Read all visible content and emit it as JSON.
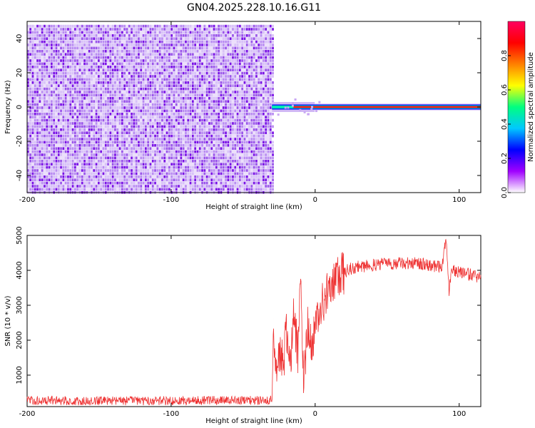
{
  "title": "GN04.2025.228.10.16.G11",
  "chart_data": [
    {
      "type": "heatmap",
      "title": "GN04.2025.228.10.16.G11",
      "xlabel": "Height of straight line (km)",
      "ylabel": "Frequency (Hz)",
      "xlim": [
        -200,
        115
      ],
      "ylim": [
        -50,
        50
      ],
      "x_ticks": [
        "-200",
        "-100",
        "0",
        "100"
      ],
      "y_ticks": [
        "-40",
        "-20",
        "0",
        "20",
        "40"
      ],
      "colorbar": {
        "label": "Normalized spectral amplitude",
        "range": [
          0,
          1
        ],
        "ticks": [
          "0.0",
          "0.2",
          "0.4",
          "0.6",
          "0.8"
        ],
        "colors": [
          "#ffffff",
          "#a000ff",
          "#0000ff",
          "#00c8ff",
          "#00ff80",
          "#ffff00",
          "#ff8000",
          "#ff0000",
          "#ff0060"
        ]
      },
      "regions": [
        {
          "x_range": [
            -200,
            -30
          ],
          "y_range": [
            -50,
            48
          ],
          "pattern": "noise",
          "amplitude_range": [
            0,
            0.15
          ]
        },
        {
          "x_range": [
            -30,
            115
          ],
          "y_center": 0,
          "pattern": "tone",
          "peak_amplitude": 1.0
        }
      ]
    },
    {
      "type": "line",
      "xlabel": "Height of straight line (km)",
      "ylabel": "SNR (10 * v/v)",
      "xlim": [
        -200,
        115
      ],
      "ylim": [
        100,
        5000
      ],
      "x_ticks": [
        "-200",
        "-100",
        "0",
        "100"
      ],
      "y_ticks": [
        "1000",
        "2000",
        "3000",
        "4000",
        "5000"
      ],
      "color": "#ee3333",
      "x": [
        -200,
        -150,
        -100,
        -50,
        -30,
        -29,
        -27,
        -25,
        -22,
        -20,
        -17,
        -15,
        -12,
        -10,
        -8,
        -5,
        -2,
        0,
        5,
        10,
        15,
        20,
        25,
        30,
        40,
        50,
        60,
        70,
        80,
        88,
        91,
        93,
        95,
        100,
        110,
        115
      ],
      "y": [
        280,
        260,
        270,
        280,
        280,
        2600,
        1000,
        1700,
        1300,
        2200,
        1400,
        2800,
        1600,
        3800,
        900,
        2500,
        1900,
        2400,
        3100,
        3500,
        3750,
        3950,
        4050,
        4100,
        4150,
        4200,
        4200,
        4200,
        4150,
        4100,
        4900,
        3400,
        4000,
        3950,
        3850,
        3800
      ]
    }
  ]
}
